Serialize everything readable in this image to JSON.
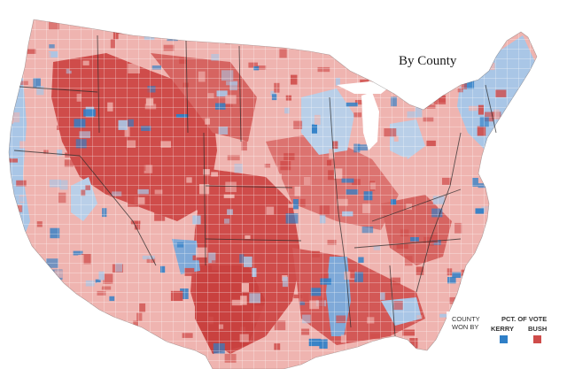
{
  "map": {
    "title": "By County",
    "colors": {
      "kerry_light": "#a9c6e6",
      "kerry_strong": "#2f7fc7",
      "bush_light": "#efb4b0",
      "bush_strong": "#cf4c4a",
      "state_border": "#2b2b2b",
      "county_border": "#ffffff"
    }
  },
  "legend": {
    "county_label": "COUNTY WON BY",
    "pct_label": "PCT. OF VOTE",
    "kerry_label": "KERRY",
    "bush_label": "BUSH",
    "kerry_color": "#2f7fc7",
    "bush_color": "#cf4c4a"
  }
}
